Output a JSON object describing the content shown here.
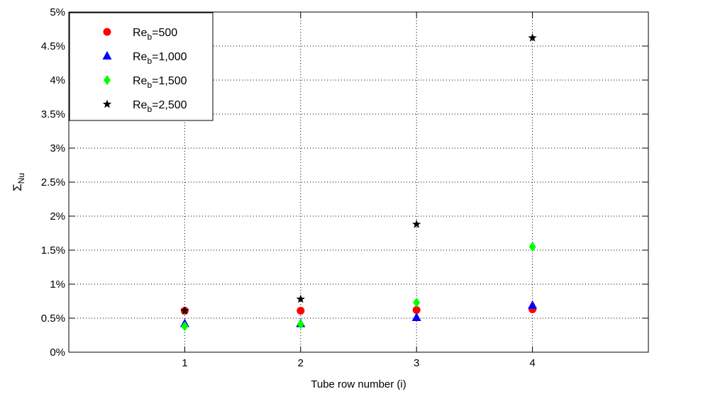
{
  "chart_data": {
    "type": "scatter",
    "xlabel": "Tube row number (i)",
    "ylabel_main": "Σ",
    "ylabel_sub": "Nu",
    "xlim": [
      0,
      5
    ],
    "ylim": [
      0,
      5
    ],
    "x_ticks": [
      1,
      2,
      3,
      4
    ],
    "x_tick_labels": [
      "1",
      "2",
      "3",
      "4"
    ],
    "y_ticks": [
      0,
      0.5,
      1,
      1.5,
      2,
      2.5,
      3,
      3.5,
      4,
      4.5,
      5
    ],
    "y_tick_labels": [
      "0%",
      "0.5%",
      "1%",
      "1.5%",
      "2%",
      "2.5%",
      "3%",
      "3.5%",
      "4%",
      "4.5%",
      "5%"
    ],
    "grid": true,
    "legend_position": "top-left",
    "series": [
      {
        "name": "Re_b=500",
        "label_main": "Re",
        "label_sub": "b",
        "label_rest": "=500",
        "marker": "circle",
        "color": "#ff0000",
        "x": [
          1,
          2,
          3,
          4
        ],
        "y": [
          0.61,
          0.61,
          0.62,
          0.63
        ]
      },
      {
        "name": "Re_b=1,000",
        "label_main": "Re",
        "label_sub": "b",
        "label_rest": "=1,000",
        "marker": "triangle",
        "color": "#0000ff",
        "x": [
          1,
          2,
          3,
          4
        ],
        "y": [
          0.42,
          0.42,
          0.51,
          0.69
        ]
      },
      {
        "name": "Re_b=1,500",
        "label_main": "Re",
        "label_sub": "b",
        "label_rest": "=1,500",
        "marker": "diamond",
        "color": "#00ff00",
        "x": [
          1,
          2,
          3,
          4
        ],
        "y": [
          0.38,
          0.41,
          0.73,
          1.55
        ]
      },
      {
        "name": "Re_b=2,500",
        "label_main": "Re",
        "label_sub": "b",
        "label_rest": "=2,500",
        "marker": "star",
        "color": "#000000",
        "x": [
          1,
          2,
          3,
          4
        ],
        "y": [
          0.61,
          0.78,
          1.88,
          4.62
        ]
      }
    ]
  }
}
